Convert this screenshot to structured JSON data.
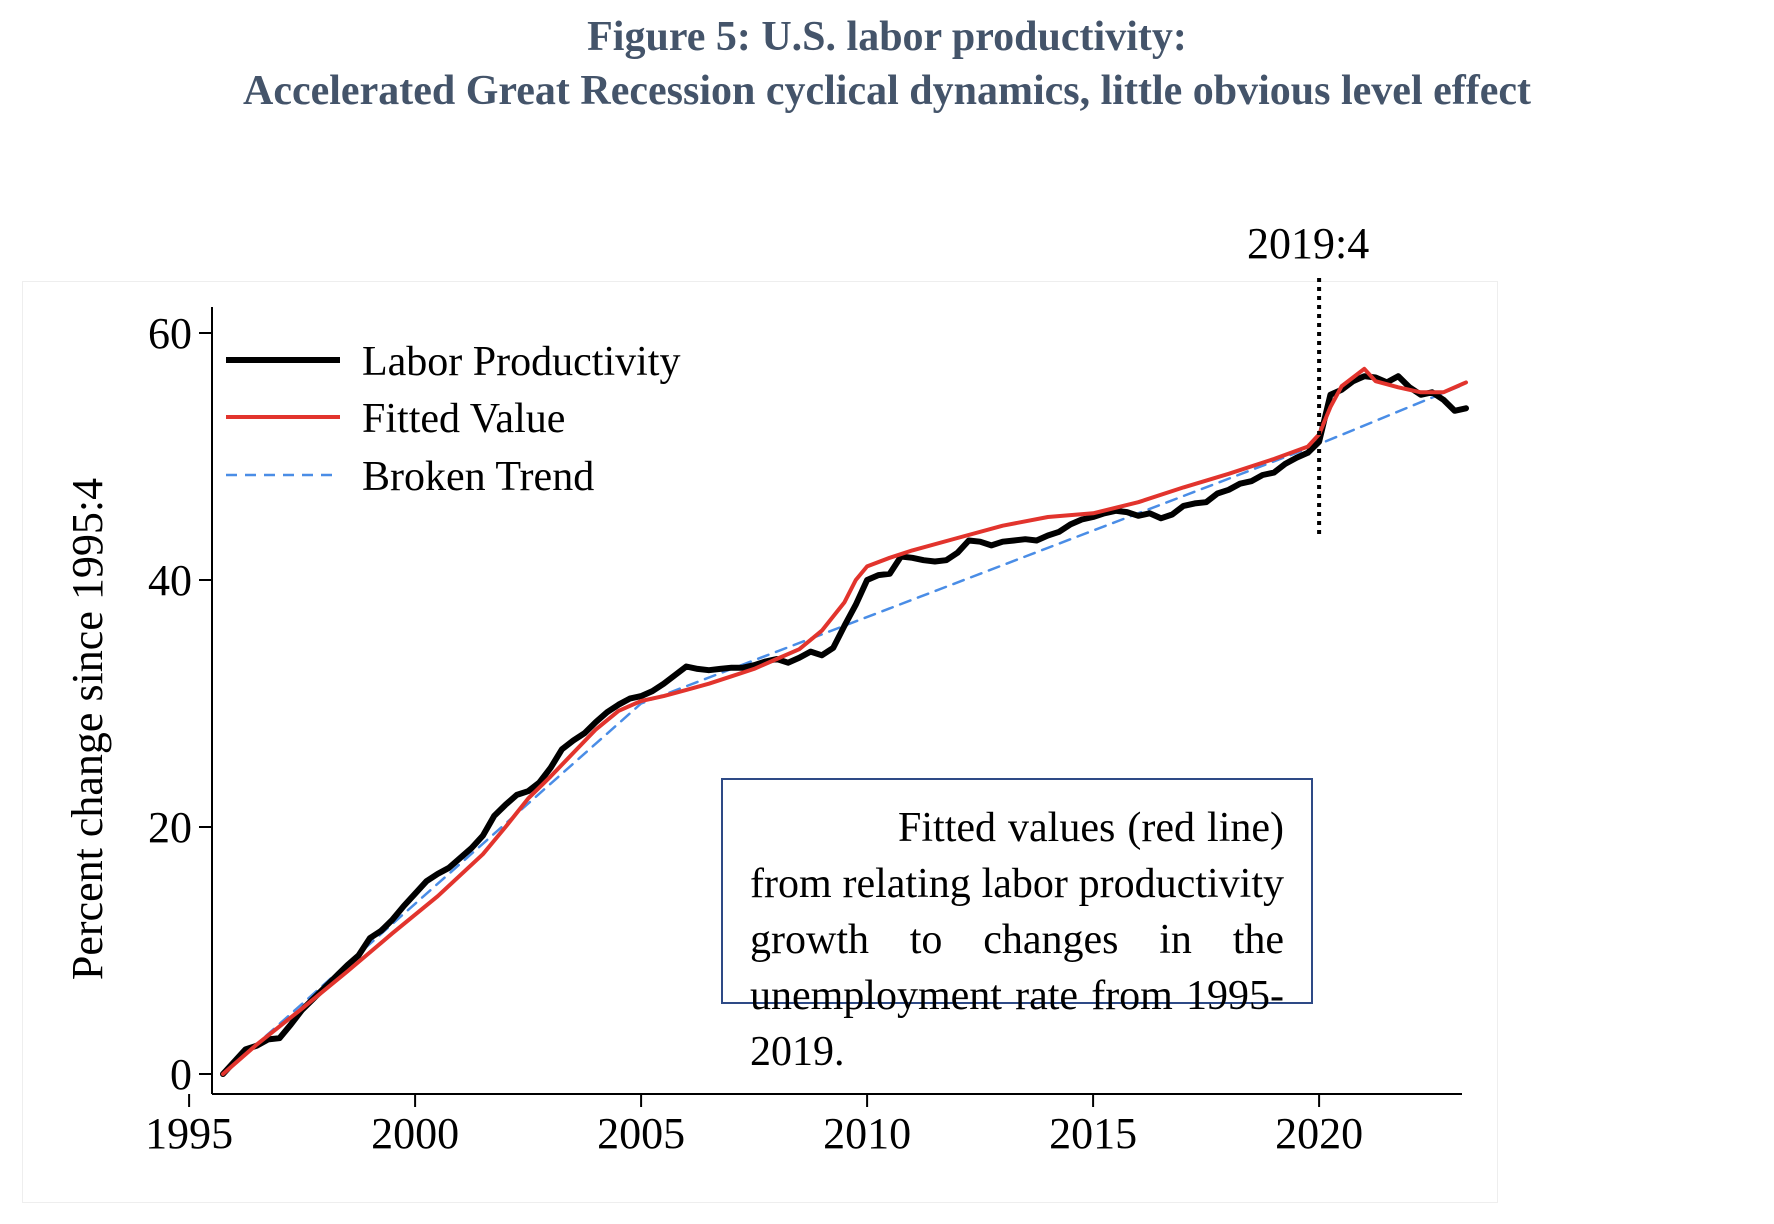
{
  "figure": {
    "title_line1": "Figure 5: U.S. labor productivity:",
    "title_line2": "Accelerated Great Recession cyclical dynamics, little obvious level effect"
  },
  "note": {
    "text": "Fitted values (red line) from relating labor productivity growth to changes in the unemployment rate from 1995-2019."
  },
  "colors": {
    "title": "#44546a",
    "labor_productivity": "#000000",
    "fitted_value": "#e2342d",
    "broken_trend": "#4a8de6",
    "note_border": "#2e4a86"
  },
  "chart_data": {
    "type": "line",
    "title": "",
    "xlabel": "",
    "ylabel": "Percent change since 1995:4",
    "xlim": [
      1995,
      2023.5
    ],
    "ylim": [
      0,
      60
    ],
    "x_ticks": [
      1995,
      2000,
      2005,
      2010,
      2015,
      2020
    ],
    "y_ticks": [
      0,
      20,
      40,
      60
    ],
    "grid": false,
    "legend_position": "top-left",
    "vline": {
      "x": 2020,
      "label": "2019:4",
      "style": "dotted"
    },
    "series": [
      {
        "name": "Labor Productivity",
        "style": "solid-thick",
        "points": [
          [
            1995.75,
            0
          ],
          [
            1996.0,
            1.0
          ],
          [
            1996.25,
            2.0
          ],
          [
            1996.5,
            2.3
          ],
          [
            1996.75,
            2.8
          ],
          [
            1997.0,
            2.9
          ],
          [
            1997.25,
            4.0
          ],
          [
            1997.5,
            5.2
          ],
          [
            1997.75,
            6.1
          ],
          [
            1998.0,
            7.0
          ],
          [
            1998.25,
            7.9
          ],
          [
            1998.5,
            8.8
          ],
          [
            1998.75,
            9.6
          ],
          [
            1999.0,
            11.0
          ],
          [
            1999.25,
            11.6
          ],
          [
            1999.5,
            12.5
          ],
          [
            1999.75,
            13.6
          ],
          [
            2000.0,
            14.6
          ],
          [
            2000.25,
            15.6
          ],
          [
            2000.5,
            16.2
          ],
          [
            2000.75,
            16.7
          ],
          [
            2001.0,
            17.5
          ],
          [
            2001.25,
            18.3
          ],
          [
            2001.5,
            19.3
          ],
          [
            2001.75,
            20.9
          ],
          [
            2002.0,
            21.8
          ],
          [
            2002.25,
            22.6
          ],
          [
            2002.5,
            22.9
          ],
          [
            2002.75,
            23.6
          ],
          [
            2003.0,
            24.8
          ],
          [
            2003.25,
            26.3
          ],
          [
            2003.5,
            27.0
          ],
          [
            2003.75,
            27.6
          ],
          [
            2004.0,
            28.5
          ],
          [
            2004.25,
            29.3
          ],
          [
            2004.5,
            29.9
          ],
          [
            2004.75,
            30.4
          ],
          [
            2005.0,
            30.6
          ],
          [
            2005.25,
            31.0
          ],
          [
            2005.5,
            31.6
          ],
          [
            2005.75,
            32.3
          ],
          [
            2006.0,
            33.0
          ],
          [
            2006.25,
            32.8
          ],
          [
            2006.5,
            32.7
          ],
          [
            2006.75,
            32.8
          ],
          [
            2007.0,
            32.9
          ],
          [
            2007.25,
            32.9
          ],
          [
            2007.5,
            33.1
          ],
          [
            2007.75,
            33.4
          ],
          [
            2008.0,
            33.6
          ],
          [
            2008.25,
            33.3
          ],
          [
            2008.5,
            33.7
          ],
          [
            2008.75,
            34.2
          ],
          [
            2009.0,
            33.9
          ],
          [
            2009.25,
            34.5
          ],
          [
            2009.5,
            36.3
          ],
          [
            2009.75,
            38.0
          ],
          [
            2010.0,
            40.0
          ],
          [
            2010.25,
            40.4
          ],
          [
            2010.5,
            40.5
          ],
          [
            2010.75,
            41.9
          ],
          [
            2011.0,
            41.8
          ],
          [
            2011.25,
            41.6
          ],
          [
            2011.5,
            41.5
          ],
          [
            2011.75,
            41.6
          ],
          [
            2012.0,
            42.2
          ],
          [
            2012.25,
            43.2
          ],
          [
            2012.5,
            43.1
          ],
          [
            2012.75,
            42.8
          ],
          [
            2013.0,
            43.1
          ],
          [
            2013.25,
            43.2
          ],
          [
            2013.5,
            43.3
          ],
          [
            2013.75,
            43.2
          ],
          [
            2014.0,
            43.6
          ],
          [
            2014.25,
            43.9
          ],
          [
            2014.5,
            44.5
          ],
          [
            2014.75,
            44.9
          ],
          [
            2015.0,
            45.1
          ],
          [
            2015.25,
            45.4
          ],
          [
            2015.5,
            45.6
          ],
          [
            2015.75,
            45.5
          ],
          [
            2016.0,
            45.2
          ],
          [
            2016.25,
            45.4
          ],
          [
            2016.5,
            45.0
          ],
          [
            2016.75,
            45.3
          ],
          [
            2017.0,
            46.0
          ],
          [
            2017.25,
            46.2
          ],
          [
            2017.5,
            46.3
          ],
          [
            2017.75,
            47.0
          ],
          [
            2018.0,
            47.3
          ],
          [
            2018.25,
            47.8
          ],
          [
            2018.5,
            48.0
          ],
          [
            2018.75,
            48.5
          ],
          [
            2019.0,
            48.7
          ],
          [
            2019.25,
            49.4
          ],
          [
            2019.5,
            49.9
          ],
          [
            2019.75,
            50.3
          ],
          [
            2020.0,
            51.2
          ],
          [
            2020.25,
            55.0
          ],
          [
            2020.5,
            55.4
          ],
          [
            2020.75,
            56.1
          ],
          [
            2021.0,
            56.5
          ],
          [
            2021.25,
            56.4
          ],
          [
            2021.5,
            56.0
          ],
          [
            2021.75,
            56.5
          ],
          [
            2022.0,
            55.6
          ],
          [
            2022.25,
            55.0
          ],
          [
            2022.5,
            55.2
          ],
          [
            2022.75,
            54.6
          ],
          [
            2023.0,
            53.7
          ],
          [
            2023.25,
            53.9
          ]
        ]
      },
      {
        "name": "Fitted Value",
        "style": "solid",
        "points": [
          [
            1995.75,
            0
          ],
          [
            1996.5,
            2.4
          ],
          [
            1997.5,
            5.3
          ],
          [
            1998.5,
            8.3
          ],
          [
            1999.5,
            11.4
          ],
          [
            2000.5,
            14.4
          ],
          [
            2001.5,
            17.8
          ],
          [
            2002.0,
            20.0
          ],
          [
            2002.5,
            22.3
          ],
          [
            2003.0,
            24.1
          ],
          [
            2003.5,
            26.0
          ],
          [
            2004.0,
            27.9
          ],
          [
            2004.5,
            29.4
          ],
          [
            2005.0,
            30.2
          ],
          [
            2005.5,
            30.6
          ],
          [
            2006.0,
            31.1
          ],
          [
            2006.5,
            31.6
          ],
          [
            2007.0,
            32.2
          ],
          [
            2007.5,
            32.8
          ],
          [
            2008.0,
            33.6
          ],
          [
            2008.5,
            34.4
          ],
          [
            2009.0,
            35.9
          ],
          [
            2009.5,
            38.2
          ],
          [
            2009.75,
            40.0
          ],
          [
            2010.0,
            41.1
          ],
          [
            2010.5,
            41.8
          ],
          [
            2011.0,
            42.4
          ],
          [
            2012.0,
            43.4
          ],
          [
            2013.0,
            44.4
          ],
          [
            2014.0,
            45.1
          ],
          [
            2015.0,
            45.4
          ],
          [
            2016.0,
            46.3
          ],
          [
            2017.0,
            47.5
          ],
          [
            2018.0,
            48.6
          ],
          [
            2019.0,
            49.8
          ],
          [
            2019.75,
            50.8
          ],
          [
            2020.0,
            51.8
          ],
          [
            2020.25,
            54.0
          ],
          [
            2020.5,
            55.7
          ],
          [
            2020.75,
            56.4
          ],
          [
            2021.0,
            57.1
          ],
          [
            2021.25,
            56.1
          ],
          [
            2021.75,
            55.6
          ],
          [
            2022.25,
            55.2
          ],
          [
            2022.75,
            55.2
          ],
          [
            2023.25,
            56.0
          ]
        ]
      },
      {
        "name": "Broken Trend",
        "style": "dashed",
        "points": [
          [
            1995.75,
            0
          ],
          [
            2005.0,
            30.0
          ],
          [
            2020.0,
            51.0
          ],
          [
            2023.25,
            55.9
          ]
        ]
      }
    ]
  }
}
